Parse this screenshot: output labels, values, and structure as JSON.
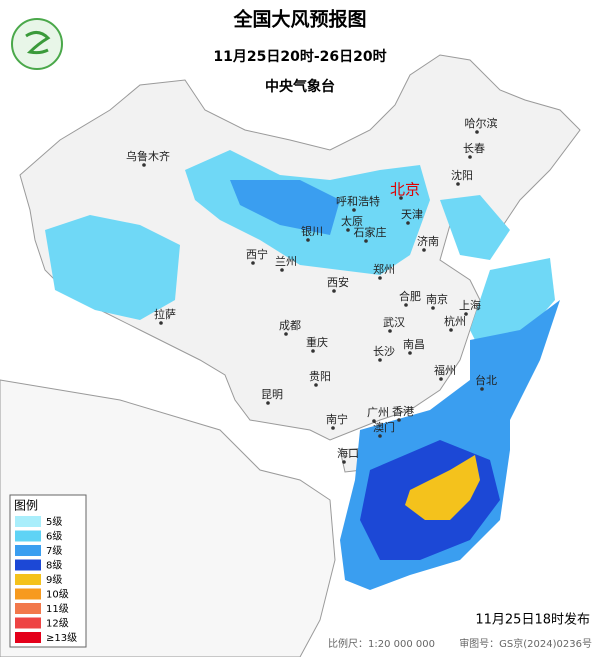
{
  "header": {
    "title": "全国大风预报图",
    "period": "11月25日20时-26日20时",
    "issuer": "中央气象台"
  },
  "cities": [
    {
      "label": "乌鲁木齐"
    },
    {
      "label": "哈尔滨"
    },
    {
      "label": "长春"
    },
    {
      "label": "沈阳"
    },
    {
      "label": "北京",
      "color": "#e00000"
    },
    {
      "label": "呼和浩特"
    },
    {
      "label": "天津"
    },
    {
      "label": "太原"
    },
    {
      "label": "石家庄"
    },
    {
      "label": "银川"
    },
    {
      "label": "济南"
    },
    {
      "label": "西宁"
    },
    {
      "label": "兰州"
    },
    {
      "label": "郑州"
    },
    {
      "label": "西安"
    },
    {
      "label": "合肥"
    },
    {
      "label": "南京"
    },
    {
      "label": "上海"
    },
    {
      "label": "拉萨"
    },
    {
      "label": "成都"
    },
    {
      "label": "武汉"
    },
    {
      "label": "杭州"
    },
    {
      "label": "重庆"
    },
    {
      "label": "长沙"
    },
    {
      "label": "南昌"
    },
    {
      "label": "福州"
    },
    {
      "label": "台北"
    },
    {
      "label": "贵阳"
    },
    {
      "label": "昆明"
    },
    {
      "label": "南宁"
    },
    {
      "label": "广州"
    },
    {
      "label": "香港"
    },
    {
      "label": "澳门"
    },
    {
      "label": "海口"
    }
  ],
  "legend": {
    "title": "图例",
    "items": [
      {
        "label": "5级",
        "color": "#a9eefb"
      },
      {
        "label": "6级",
        "color": "#5fd3f5"
      },
      {
        "label": "7级",
        "color": "#3a9ef0"
      },
      {
        "label": "8级",
        "color": "#1c48d6"
      },
      {
        "label": "9级",
        "color": "#f4c21c"
      },
      {
        "label": "10级",
        "color": "#f79a1e"
      },
      {
        "label": "11级",
        "color": "#f2784b"
      },
      {
        "label": "12级",
        "color": "#ee4444"
      },
      {
        "label": "≥13级",
        "color": "#e4001a"
      }
    ]
  },
  "footer": {
    "issued": "11月25日18时发布",
    "scale": "比例尺：1:20 000 000",
    "review": "审图号：GS京(2024)0236号"
  }
}
